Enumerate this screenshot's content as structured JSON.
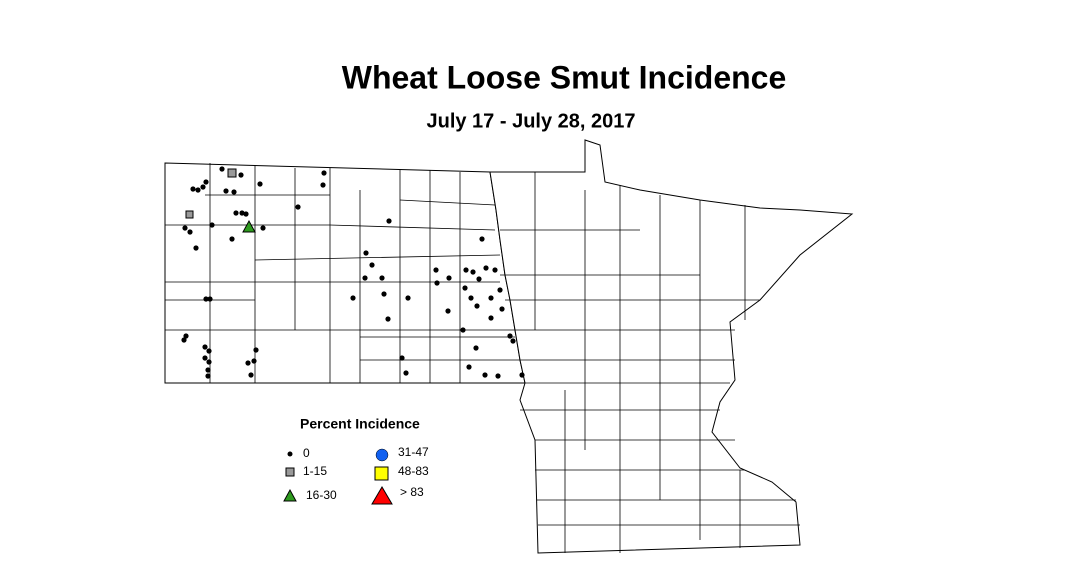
{
  "title": "Wheat Loose Smut Incidence",
  "subtitle": "July 17 - July 28, 2017",
  "legend": {
    "title": "Percent Incidence",
    "items": [
      {
        "label": "0"
      },
      {
        "label": "1-15"
      },
      {
        "label": "16-30"
      },
      {
        "label": "31-47"
      },
      {
        "label": "48-83"
      },
      {
        "label": "> 83"
      }
    ]
  }
}
